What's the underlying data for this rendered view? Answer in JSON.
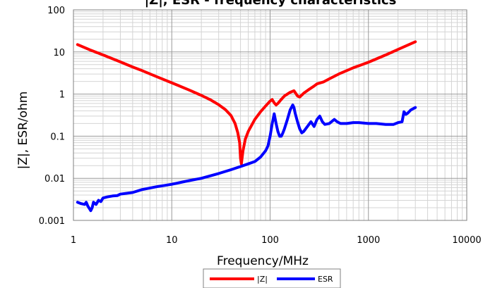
{
  "chart_data": {
    "type": "line",
    "title": "|Z|, ESR - frequency characteristics",
    "xlabel": "Frequency/MHz",
    "ylabel": "|Z|, ESR/ohm",
    "x_scale": "log",
    "y_scale": "log",
    "xlim": [
      1,
      10000
    ],
    "ylim": [
      0.001,
      100
    ],
    "x_ticks": [
      "1",
      "10",
      "100",
      "1000",
      "10000"
    ],
    "y_ticks": [
      "0.001",
      "0.01",
      "0.1",
      "1",
      "10",
      "100"
    ],
    "grid": true,
    "legend_position": "bottom",
    "series": [
      {
        "name": "|Z|",
        "color": "#ff0000",
        "x": [
          1.1,
          1.5,
          2,
          3,
          4,
          5,
          7,
          10,
          15,
          20,
          25,
          30,
          35,
          40,
          44,
          47,
          49,
          50,
          51,
          53,
          56,
          60,
          70,
          80,
          90,
          100,
          105,
          110,
          115,
          120,
          130,
          140,
          150,
          160,
          175,
          190,
          200,
          220,
          250,
          280,
          300,
          350,
          400,
          500,
          700,
          1000,
          1500,
          2000,
          2500,
          3000
        ],
        "values": [
          15,
          11,
          8.5,
          5.8,
          4.4,
          3.6,
          2.6,
          1.85,
          1.25,
          0.93,
          0.72,
          0.56,
          0.43,
          0.31,
          0.2,
          0.12,
          0.07,
          0.03,
          0.022,
          0.045,
          0.085,
          0.13,
          0.25,
          0.38,
          0.52,
          0.68,
          0.74,
          0.62,
          0.55,
          0.6,
          0.75,
          0.9,
          1.0,
          1.1,
          1.2,
          0.9,
          0.85,
          1.05,
          1.3,
          1.55,
          1.75,
          1.95,
          2.3,
          3.0,
          4.2,
          5.7,
          8.5,
          11.5,
          14.5,
          17.5
        ]
      },
      {
        "name": "ESR",
        "color": "#0000ff",
        "x": [
          1.1,
          1.2,
          1.3,
          1.35,
          1.4,
          1.5,
          1.55,
          1.6,
          1.7,
          1.8,
          1.9,
          2,
          2.2,
          2.5,
          2.8,
          3,
          4,
          5,
          7,
          10,
          15,
          20,
          30,
          40,
          50,
          60,
          70,
          80,
          90,
          95,
          100,
          105,
          110,
          115,
          120,
          125,
          130,
          135,
          140,
          150,
          160,
          170,
          175,
          180,
          190,
          200,
          210,
          220,
          240,
          260,
          280,
          300,
          320,
          340,
          360,
          400,
          450,
          480,
          520,
          600,
          700,
          800,
          1000,
          1200,
          1500,
          1800,
          2000,
          2200,
          2300,
          2400,
          2500,
          2700,
          3000
        ],
        "values": [
          0.0027,
          0.0025,
          0.0024,
          0.0027,
          0.0022,
          0.0017,
          0.002,
          0.0027,
          0.0024,
          0.003,
          0.0028,
          0.0034,
          0.0036,
          0.0038,
          0.0039,
          0.0042,
          0.0046,
          0.0054,
          0.0063,
          0.0072,
          0.0088,
          0.01,
          0.013,
          0.016,
          0.019,
          0.022,
          0.025,
          0.032,
          0.045,
          0.058,
          0.1,
          0.2,
          0.34,
          0.2,
          0.13,
          0.1,
          0.1,
          0.12,
          0.15,
          0.25,
          0.42,
          0.55,
          0.48,
          0.35,
          0.22,
          0.15,
          0.12,
          0.13,
          0.17,
          0.22,
          0.17,
          0.25,
          0.3,
          0.22,
          0.19,
          0.2,
          0.25,
          0.22,
          0.2,
          0.2,
          0.21,
          0.21,
          0.2,
          0.2,
          0.19,
          0.19,
          0.21,
          0.22,
          0.38,
          0.33,
          0.35,
          0.42,
          0.48
        ]
      }
    ]
  }
}
